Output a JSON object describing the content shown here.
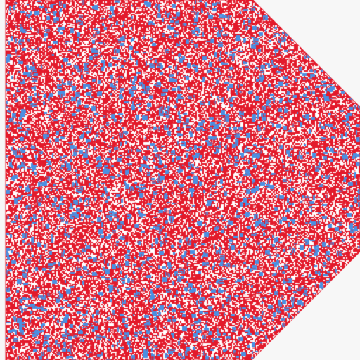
{
  "board": {
    "shape": "octagon-like polygon with two chamfered right corners",
    "colors": {
      "background": "#f7f7f7",
      "wall": "#e31a2b",
      "open_dark": "#ffffff",
      "water": "#4a90e2"
    }
  }
}
